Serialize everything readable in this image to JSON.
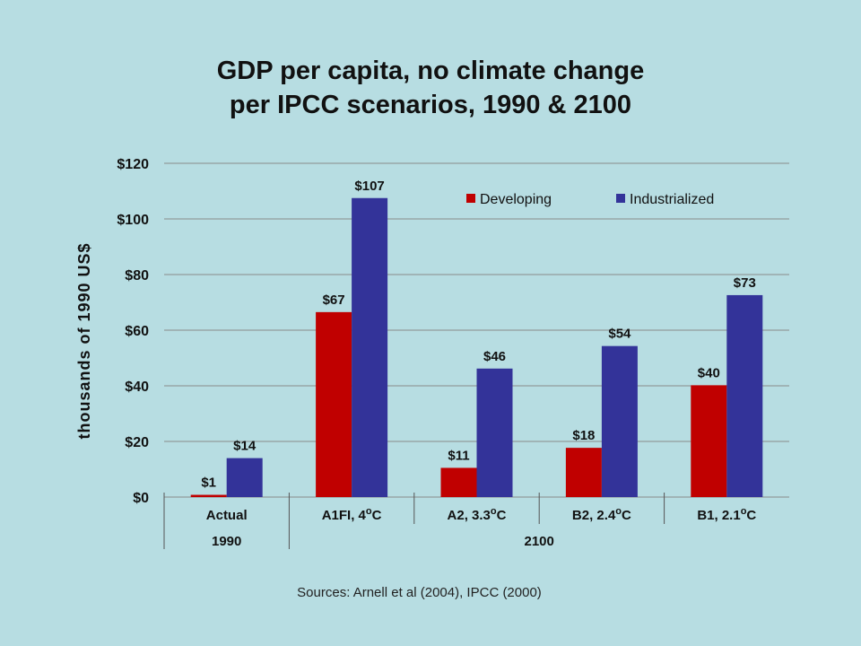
{
  "title_lines": [
    "GDP per capita, no climate change",
    "per IPCC scenarios, 1990 & 2100"
  ],
  "source": "Sources: Arnell et al (2004), IPCC (2000)",
  "chart_data": {
    "type": "bar",
    "title": "GDP per capita, no climate change per IPCC scenarios, 1990 & 2100",
    "ylabel": "thousands of 1990 US$",
    "ylim": [
      0,
      120
    ],
    "yticks": [
      0,
      20,
      40,
      60,
      80,
      100,
      120
    ],
    "ytick_labels": [
      "$0",
      "$20",
      "$40",
      "$60",
      "$80",
      "$100",
      "$120"
    ],
    "categories": [
      {
        "label": "Actual",
        "sup": ""
      },
      {
        "label": "A1FI, 4",
        "sup": "o",
        "suffix": "C"
      },
      {
        "label": "A2, 3.3",
        "sup": "o",
        "suffix": "C"
      },
      {
        "label": "B2, 2.4",
        "sup": "o",
        "suffix": "C"
      },
      {
        "label": "B1, 2.1",
        "sup": "o",
        "suffix": "C"
      }
    ],
    "groups": [
      {
        "label": "1990",
        "span": [
          0,
          0
        ]
      },
      {
        "label": "2100",
        "span": [
          1,
          4
        ]
      }
    ],
    "series": [
      {
        "name": "Developing",
        "color": "#c00000",
        "values": [
          0.8,
          66.5,
          10.5,
          17.7,
          40.2
        ],
        "labels": [
          "$1",
          "$67",
          "$11",
          "$18",
          "$40"
        ]
      },
      {
        "name": "Industrialized",
        "color": "#333399",
        "values": [
          14,
          107.5,
          46.2,
          54.3,
          72.6
        ],
        "labels": [
          "$14",
          "$107",
          "$46",
          "$54",
          "$73"
        ]
      }
    ],
    "grid": true,
    "legend_position": "top-right"
  }
}
